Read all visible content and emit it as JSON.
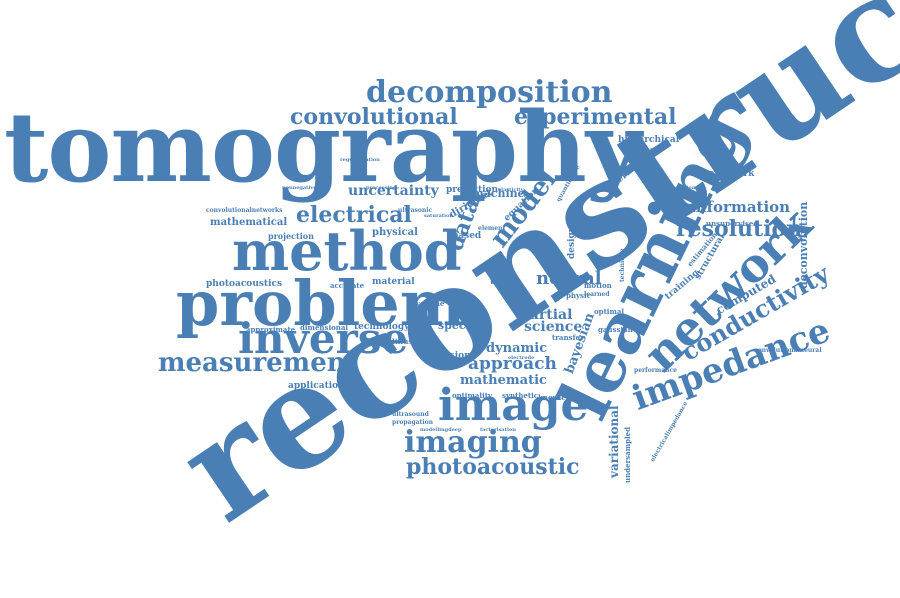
{
  "word_color": "#4a7fb5",
  "background": "#ffffff",
  "words": [
    {
      "text": "reconstruction",
      "orientation": "diagonal-up",
      "rank": 1
    },
    {
      "text": "tomography",
      "orientation": "horizontal",
      "rank": 2
    },
    {
      "text": "learning",
      "orientation": "diagonal-up",
      "rank": 3
    },
    {
      "text": "problem",
      "orientation": "horizontal",
      "rank": 4
    },
    {
      "text": "method",
      "orientation": "horizontal",
      "rank": 5
    },
    {
      "text": "image",
      "orientation": "horizontal",
      "rank": 6
    },
    {
      "text": "inverse",
      "orientation": "horizontal",
      "rank": 7
    },
    {
      "text": "network",
      "orientation": "diagonal-up",
      "rank": 8
    },
    {
      "text": "impedance",
      "orientation": "diagonal-up",
      "rank": 9
    },
    {
      "text": "decomposition",
      "orientation": "horizontal",
      "rank": 10
    },
    {
      "text": "measurement",
      "orientation": "horizontal",
      "rank": 11
    },
    {
      "text": "imaging",
      "orientation": "horizontal",
      "rank": 12
    },
    {
      "text": "conductivity",
      "orientation": "diagonal-up",
      "rank": 13
    },
    {
      "text": "photoacoustic",
      "orientation": "horizontal",
      "rank": 14
    },
    {
      "text": "convolutional",
      "orientation": "horizontal",
      "rank": 15
    },
    {
      "text": "experimental",
      "orientation": "horizontal",
      "rank": 16
    },
    {
      "text": "electrical",
      "orientation": "horizontal",
      "rank": 17
    },
    {
      "text": "resolution",
      "orientation": "horizontal",
      "rank": 18
    },
    {
      "text": "model",
      "orientation": "diagonal-up",
      "rank": 19
    },
    {
      "text": "data",
      "orientation": "diagonal-up",
      "rank": 20
    },
    {
      "text": "neural",
      "orientation": "horizontal",
      "rank": 21
    },
    {
      "text": "uncertainty",
      "orientation": "horizontal",
      "rank": 22
    },
    {
      "text": "information",
      "orientation": "horizontal",
      "rank": 23
    },
    {
      "text": "approach",
      "orientation": "horizontal",
      "rank": 24
    },
    {
      "text": "dynamic",
      "orientation": "horizontal",
      "rank": 25
    },
    {
      "text": "partial",
      "orientation": "horizontal",
      "rank": 26
    },
    {
      "text": "science",
      "orientation": "horizontal",
      "rank": 27
    },
    {
      "text": "mathematic",
      "orientation": "horizontal",
      "rank": 28
    },
    {
      "text": "bayesian",
      "orientation": "diagonal-up",
      "rank": 29
    },
    {
      "text": "variational",
      "orientation": "vertical-up",
      "rank": 30
    },
    {
      "text": "computed",
      "orientation": "diagonal-up",
      "rank": 31
    },
    {
      "text": "deconvolution",
      "orientation": "vertical-up",
      "rank": 32
    },
    {
      "text": "spectral",
      "orientation": "horizontal",
      "rank": 33
    },
    {
      "text": "machine",
      "orientation": "horizontal",
      "rank": 34
    },
    {
      "text": "mathematical",
      "orientation": "horizontal",
      "rank": 35
    },
    {
      "text": "physical",
      "orientation": "horizontal",
      "rank": 36
    },
    {
      "text": "material",
      "orientation": "horizontal",
      "rank": 37
    },
    {
      "text": "technology",
      "orientation": "horizontal",
      "rank": 38
    },
    {
      "text": "application",
      "orientation": "horizontal",
      "rank": 39
    },
    {
      "text": "photoacoustics",
      "orientation": "horizontal",
      "rank": 40
    },
    {
      "text": "inversion",
      "orientation": "horizontal",
      "rank": 41
    },
    {
      "text": "framework",
      "orientation": "horizontal",
      "rank": 42
    },
    {
      "text": "hierarchical",
      "orientation": "horizontal",
      "rank": 43
    },
    {
      "text": "iterative",
      "orientation": "diagonal-up",
      "rank": 44
    },
    {
      "text": "prediction",
      "orientation": "horizontal",
      "rank": 45
    },
    {
      "text": "dirichlet",
      "orientation": "diagonal-up",
      "rank": 46
    },
    {
      "text": "equation",
      "orientation": "diagonal-up",
      "rank": 47
    },
    {
      "text": "design",
      "orientation": "vertical-up",
      "rank": 48
    },
    {
      "text": "training",
      "orientation": "diagonal-up",
      "rank": 49
    },
    {
      "text": "structural",
      "orientation": "diagonal-up",
      "rank": 50
    },
    {
      "text": "time",
      "orientation": "horizontal",
      "rank": 51
    },
    {
      "text": "real",
      "orientation": "horizontal",
      "rank": 52
    },
    {
      "text": "based",
      "orientation": "horizontal",
      "rank": 53
    },
    {
      "text": "projection",
      "orientation": "horizontal",
      "rank": 54
    },
    {
      "text": "accurate",
      "orientation": "horizontal",
      "rank": 55
    },
    {
      "text": "dimensional",
      "orientation": "horizontal",
      "rank": 56
    },
    {
      "text": "approximate",
      "orientation": "horizontal",
      "rank": 57
    },
    {
      "text": "diffusion",
      "orientation": "horizontal",
      "rank": 58
    },
    {
      "text": "optimal",
      "orientation": "horizontal",
      "rank": 59
    },
    {
      "text": "gaussian",
      "orientation": "horizontal",
      "rank": 60
    },
    {
      "text": "transfer",
      "orientation": "horizontal",
      "rank": 61
    },
    {
      "text": "physic",
      "orientation": "horizontal",
      "rank": 62
    },
    {
      "text": "volume",
      "orientation": "horizontal",
      "rank": 63
    },
    {
      "text": "beam",
      "orientation": "horizontal",
      "rank": 64
    },
    {
      "text": "motion",
      "orientation": "horizontal",
      "rank": 65
    },
    {
      "text": "learned",
      "orientation": "horizontal",
      "rank": 66
    },
    {
      "text": "optimality",
      "orientation": "horizontal",
      "rank": 67
    },
    {
      "text": "synthetic",
      "orientation": "horizontal",
      "rank": 68
    },
    {
      "text": "knowledge",
      "orientation": "horizontal",
      "rank": 69
    },
    {
      "text": "undersampled",
      "orientation": "vertical-up",
      "rank": 70
    },
    {
      "text": "unsupervised",
      "orientation": "horizontal",
      "rank": 71
    },
    {
      "text": "estimation",
      "orientation": "diagonal-up",
      "rank": 72
    },
    {
      "text": "convolutionalneural",
      "orientation": "horizontal",
      "rank": 73
    },
    {
      "text": "electricalimpedance",
      "orientation": "diagonal-up",
      "rank": 74
    },
    {
      "text": "performance",
      "orientation": "horizontal",
      "rank": 75
    },
    {
      "text": "convolutionalnetworks",
      "orientation": "horizontal",
      "rank": 76
    },
    {
      "text": "ultrasonic",
      "orientation": "horizontal",
      "rank": 77
    },
    {
      "text": "optimisation",
      "orientation": "horizontal",
      "rank": 78
    },
    {
      "text": "quantification",
      "orientation": "horizontal",
      "rank": 79
    },
    {
      "text": "quantitative",
      "orientation": "diagonal-up",
      "rank": 80
    },
    {
      "text": "ultrasound",
      "orientation": "horizontal",
      "rank": 81
    },
    {
      "text": "propagation",
      "orientation": "horizontal",
      "rank": 82
    },
    {
      "text": "modellingdeep",
      "orientation": "horizontal",
      "rank": 83
    },
    {
      "text": "factorisation",
      "orientation": "horizontal",
      "rank": 84
    },
    {
      "text": "element",
      "orientation": "horizontal",
      "rank": 85
    },
    {
      "text": "electrode",
      "orientation": "horizontal",
      "rank": 86
    },
    {
      "text": "nonnegative",
      "orientation": "horizontal",
      "rank": 87
    },
    {
      "text": "regularisation",
      "orientation": "horizontal",
      "rank": 88
    },
    {
      "text": "processing",
      "orientation": "horizontal",
      "rank": 89
    },
    {
      "text": "technique",
      "orientation": "vertical-up",
      "rank": 90
    },
    {
      "text": "saturation",
      "orientation": "horizontal",
      "rank": 91
    },
    {
      "text": "whole",
      "orientation": "horizontal",
      "rank": 92
    },
    {
      "text": "elasticity",
      "orientation": "horizontal",
      "rank": 93
    }
  ]
}
